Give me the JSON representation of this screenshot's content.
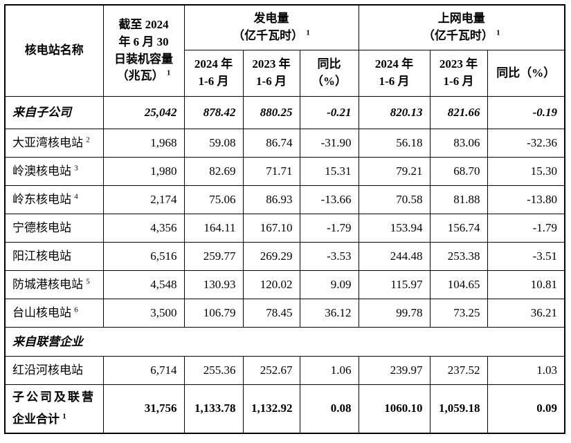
{
  "table": {
    "header": {
      "plant_name": "核电站名称",
      "capacity": {
        "text": "截至 2024\n年 6 月 30\n日装机容量\n（兆瓦）",
        "sup": "1"
      },
      "generation_group": {
        "text": "发电量\n（亿千瓦时）",
        "sup": "1"
      },
      "ongrid_group": {
        "text": "上网电量\n（亿千瓦时）",
        "sup": "1"
      },
      "sub": {
        "gen_2024": "2024 年\n1-6 月",
        "gen_2023": "2023 年\n1-6 月",
        "gen_yoy": "同比\n（%）",
        "grid_2024": "2024 年\n1-6 月",
        "grid_2023": "2023 年\n1-6 月",
        "grid_yoy": "同比（%）"
      }
    },
    "rows": [
      {
        "type": "subtotal",
        "name": "来自子公司",
        "values": [
          "25,042",
          "878.42",
          "880.25",
          "-0.21",
          "820.13",
          "821.66",
          "-0.19"
        ]
      },
      {
        "type": "data",
        "name": "大亚湾核电站",
        "sup": "2",
        "values": [
          "1,968",
          "59.08",
          "86.74",
          "-31.90",
          "56.18",
          "83.06",
          "-32.36"
        ]
      },
      {
        "type": "data",
        "name": "岭澳核电站",
        "sup": "3",
        "values": [
          "1,980",
          "82.69",
          "71.71",
          "15.31",
          "79.21",
          "68.70",
          "15.30"
        ]
      },
      {
        "type": "data",
        "name": "岭东核电站",
        "sup": "4",
        "values": [
          "2,174",
          "75.06",
          "86.93",
          "-13.66",
          "70.58",
          "81.88",
          "-13.80"
        ]
      },
      {
        "type": "data",
        "name": "宁德核电站",
        "values": [
          "4,356",
          "164.11",
          "167.10",
          "-1.79",
          "153.94",
          "156.74",
          "-1.79"
        ]
      },
      {
        "type": "data",
        "name": "阳江核电站",
        "values": [
          "6,516",
          "259.77",
          "269.29",
          "-3.53",
          "244.48",
          "253.38",
          "-3.51"
        ]
      },
      {
        "type": "data",
        "name": "防城港核电站",
        "sup": "5",
        "values": [
          "4,548",
          "130.93",
          "120.02",
          "9.09",
          "115.97",
          "104.65",
          "10.81"
        ]
      },
      {
        "type": "data",
        "name": "台山核电站",
        "sup": "6",
        "values": [
          "3,500",
          "106.79",
          "78.45",
          "36.12",
          "99.78",
          "73.25",
          "36.21"
        ]
      },
      {
        "type": "section",
        "name": "来自联营企业"
      },
      {
        "type": "data",
        "name": "红沿河核电站",
        "values": [
          "6,714",
          "255.36",
          "252.67",
          "1.06",
          "239.97",
          "237.52",
          "1.03"
        ]
      },
      {
        "type": "total",
        "name": "子公司及联营\n企业合计",
        "sup": "1",
        "values": [
          "31,756",
          "1,133.78",
          "1,132.92",
          "0.08",
          "1060.10",
          "1,059.18",
          "0.09"
        ]
      }
    ]
  }
}
